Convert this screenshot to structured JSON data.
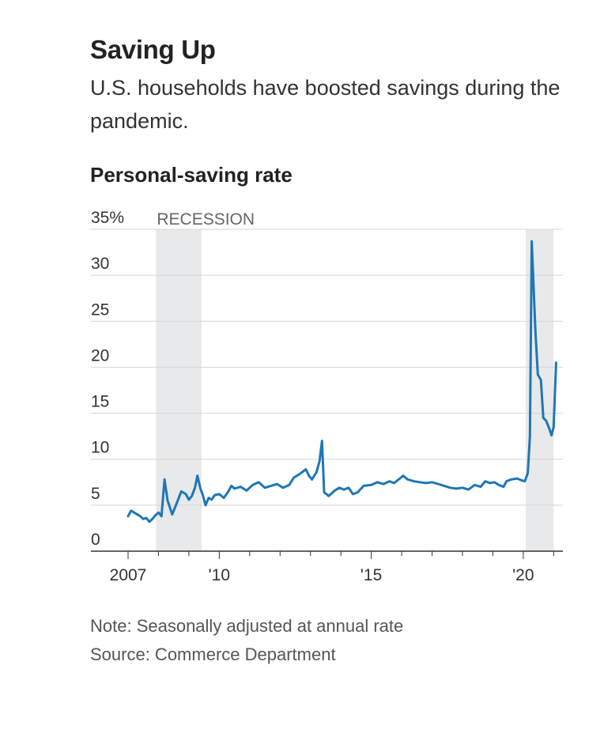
{
  "header": {
    "title": "Saving Up",
    "subtitle": "U.S. households have boosted savings during the pandemic.",
    "chart_title": "Personal-saving rate"
  },
  "footer": {
    "note": "Note: Seasonally adjusted at annual rate",
    "source": "Source: Commerce Department"
  },
  "colors": {
    "line": "#1f77b4",
    "recession": "#e8e9ea",
    "grid": "#d6d6d6",
    "axis": "#333333"
  },
  "chart_data": {
    "type": "line",
    "title": "Personal-saving rate",
    "xlabel": "",
    "ylabel": "",
    "x_range": [
      2007,
      2021.2
    ],
    "ylim": [
      0,
      35
    ],
    "grid": true,
    "y_ticks": [
      {
        "value": 0,
        "label": "0"
      },
      {
        "value": 5,
        "label": "5"
      },
      {
        "value": 10,
        "label": "10"
      },
      {
        "value": 15,
        "label": "15"
      },
      {
        "value": 20,
        "label": "20"
      },
      {
        "value": 25,
        "label": "25"
      },
      {
        "value": 30,
        "label": "30"
      },
      {
        "value": 35,
        "label": "35%"
      }
    ],
    "x_ticks": [
      {
        "value": 2007,
        "label": "2007"
      },
      {
        "value": 2010,
        "label": "'10"
      },
      {
        "value": 2015,
        "label": "'15"
      },
      {
        "value": 2020,
        "label": "'20"
      }
    ],
    "recessions": [
      {
        "start": 2007.92,
        "end": 2009.42,
        "label": "RECESSION"
      },
      {
        "start": 2020.08,
        "end": 2021.0,
        "label": ""
      }
    ],
    "series": [
      {
        "name": "",
        "points": [
          [
            2007.0,
            3.8
          ],
          [
            2007.1,
            4.4
          ],
          [
            2007.25,
            4.1
          ],
          [
            2007.4,
            3.8
          ],
          [
            2007.5,
            3.5
          ],
          [
            2007.6,
            3.6
          ],
          [
            2007.7,
            3.2
          ],
          [
            2007.8,
            3.5
          ],
          [
            2007.9,
            3.9
          ],
          [
            2008.0,
            4.2
          ],
          [
            2008.1,
            3.8
          ],
          [
            2008.2,
            7.8
          ],
          [
            2008.3,
            5.5
          ],
          [
            2008.45,
            4.0
          ],
          [
            2008.6,
            5.2
          ],
          [
            2008.75,
            6.5
          ],
          [
            2008.9,
            6.2
          ],
          [
            2009.0,
            5.6
          ],
          [
            2009.1,
            6.0
          ],
          [
            2009.2,
            6.9
          ],
          [
            2009.28,
            8.2
          ],
          [
            2009.38,
            6.8
          ],
          [
            2009.45,
            6.2
          ],
          [
            2009.55,
            5.0
          ],
          [
            2009.65,
            5.8
          ],
          [
            2009.75,
            5.6
          ],
          [
            2009.85,
            6.1
          ],
          [
            2010.0,
            6.2
          ],
          [
            2010.15,
            5.8
          ],
          [
            2010.3,
            6.5
          ],
          [
            2010.4,
            7.1
          ],
          [
            2010.5,
            6.8
          ],
          [
            2010.7,
            7.0
          ],
          [
            2010.9,
            6.6
          ],
          [
            2011.1,
            7.2
          ],
          [
            2011.3,
            7.5
          ],
          [
            2011.5,
            6.9
          ],
          [
            2011.7,
            7.1
          ],
          [
            2011.9,
            7.3
          ],
          [
            2012.1,
            6.9
          ],
          [
            2012.3,
            7.2
          ],
          [
            2012.45,
            8.0
          ],
          [
            2012.65,
            8.4
          ],
          [
            2012.85,
            8.9
          ],
          [
            2012.95,
            8.2
          ],
          [
            2013.05,
            7.8
          ],
          [
            2013.2,
            8.6
          ],
          [
            2013.3,
            9.8
          ],
          [
            2013.38,
            12.0
          ],
          [
            2013.45,
            6.4
          ],
          [
            2013.6,
            6.0
          ],
          [
            2013.8,
            6.6
          ],
          [
            2013.95,
            6.9
          ],
          [
            2014.1,
            6.7
          ],
          [
            2014.25,
            6.9
          ],
          [
            2014.4,
            6.2
          ],
          [
            2014.55,
            6.4
          ],
          [
            2014.75,
            7.1
          ],
          [
            2015.0,
            7.2
          ],
          [
            2015.2,
            7.5
          ],
          [
            2015.4,
            7.3
          ],
          [
            2015.6,
            7.6
          ],
          [
            2015.75,
            7.4
          ],
          [
            2015.9,
            7.8
          ],
          [
            2016.05,
            8.2
          ],
          [
            2016.2,
            7.8
          ],
          [
            2016.4,
            7.6
          ],
          [
            2016.6,
            7.5
          ],
          [
            2016.8,
            7.4
          ],
          [
            2017.0,
            7.5
          ],
          [
            2017.2,
            7.3
          ],
          [
            2017.4,
            7.1
          ],
          [
            2017.6,
            6.9
          ],
          [
            2017.8,
            6.8
          ],
          [
            2018.0,
            6.9
          ],
          [
            2018.2,
            6.7
          ],
          [
            2018.4,
            7.2
          ],
          [
            2018.6,
            7.0
          ],
          [
            2018.75,
            7.6
          ],
          [
            2018.9,
            7.4
          ],
          [
            2019.05,
            7.5
          ],
          [
            2019.2,
            7.2
          ],
          [
            2019.35,
            7.0
          ],
          [
            2019.45,
            7.6
          ],
          [
            2019.6,
            7.8
          ],
          [
            2019.8,
            7.9
          ],
          [
            2019.95,
            7.7
          ],
          [
            2020.05,
            7.6
          ],
          [
            2020.15,
            8.5
          ],
          [
            2020.22,
            12.5
          ],
          [
            2020.28,
            33.7
          ],
          [
            2020.4,
            24.0
          ],
          [
            2020.48,
            19.2
          ],
          [
            2020.58,
            18.6
          ],
          [
            2020.66,
            14.5
          ],
          [
            2020.75,
            14.2
          ],
          [
            2020.85,
            13.4
          ],
          [
            2020.93,
            12.6
          ],
          [
            2021.0,
            13.5
          ],
          [
            2021.08,
            20.5
          ]
        ]
      }
    ]
  }
}
